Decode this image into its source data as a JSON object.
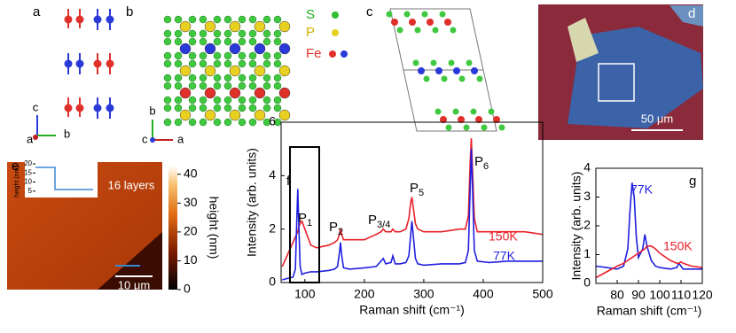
{
  "panels": [
    {
      "label": "a",
      "axes": [
        "c",
        "b",
        "a"
      ]
    },
    {
      "label": "b",
      "legend": [
        "S",
        "P",
        "Fe"
      ],
      "axes": [
        "b",
        "c",
        "a"
      ]
    },
    {
      "label": "c"
    },
    {
      "label": "d",
      "scale_bar": "50 μm"
    },
    {
      "label": "e",
      "inset": {
        "annotation": "16 layers",
        "ylabel": "height (nm)",
        "yticks": [
          20,
          15,
          10,
          5
        ],
        "ylim": [
          2,
          21
        ]
      },
      "colorbar": {
        "label": "height (nm)",
        "ticks": [
          0,
          10,
          20,
          30,
          40
        ],
        "lim": [
          0,
          43
        ]
      },
      "scale_bar": "10 μm"
    }
  ],
  "chart_data": [
    {
      "type": "line",
      "label": "f",
      "xlabel": "Raman shift (cm⁻¹)",
      "ylabel": "Intensity (arb. units)",
      "x": [
        62,
        70,
        80,
        84,
        86,
        88,
        90,
        92,
        95,
        100,
        110,
        120,
        140,
        150,
        155,
        158,
        160,
        162,
        165,
        175,
        200,
        220,
        228,
        232,
        236,
        245,
        248,
        252,
        260,
        270,
        275,
        278,
        280,
        283,
        286,
        290,
        300,
        330,
        360,
        370,
        375,
        378,
        380,
        382,
        385,
        390,
        410,
        440,
        470,
        500
      ],
      "xlim": [
        60,
        500
      ],
      "xticks": [
        100,
        200,
        300,
        400,
        500
      ],
      "ylim": [
        0,
        6
      ],
      "yticks": [
        0,
        2,
        4,
        6
      ],
      "series": [
        {
          "name": "150K",
          "color": "#e8202a",
          "values": [
            0.6,
            1.0,
            1.5,
            1.7,
            1.8,
            1.9,
            2.1,
            2.2,
            2.3,
            2.0,
            1.4,
            1.3,
            1.4,
            1.5,
            1.6,
            1.8,
            2.0,
            1.8,
            1.6,
            1.6,
            1.6,
            1.8,
            1.9,
            2.0,
            1.9,
            1.9,
            2.0,
            1.9,
            1.9,
            2.0,
            2.4,
            3.0,
            3.2,
            2.7,
            2.2,
            2.0,
            1.9,
            1.9,
            2.0,
            2.0,
            2.5,
            4.5,
            5.4,
            4.2,
            2.4,
            1.9,
            1.9,
            1.9,
            1.9,
            1.8
          ]
        },
        {
          "name": "77K",
          "color": "#1f1fe0",
          "values": [
            0.1,
            0.15,
            0.2,
            0.5,
            2.0,
            3.5,
            2.0,
            0.6,
            0.3,
            0.35,
            0.4,
            0.4,
            0.45,
            0.5,
            0.6,
            1.1,
            1.5,
            1.0,
            0.55,
            0.5,
            0.55,
            0.6,
            0.8,
            0.9,
            0.7,
            0.75,
            1.0,
            0.7,
            0.7,
            0.75,
            1.0,
            1.8,
            2.3,
            1.6,
            0.9,
            0.7,
            0.65,
            0.7,
            0.7,
            0.75,
            1.2,
            3.5,
            5.0,
            3.5,
            1.2,
            0.8,
            0.75,
            0.8,
            0.8,
            0.8
          ]
        }
      ],
      "annotations": [
        {
          "text": "P",
          "sub": "1"
        },
        {
          "text": "P",
          "sub": "2"
        },
        {
          "text": "P",
          "sub": "3/4"
        },
        {
          "text": "P",
          "sub": "5"
        },
        {
          "text": "P",
          "sub": "6"
        }
      ]
    },
    {
      "type": "line",
      "label": "g",
      "xlabel": "Raman shift (cm⁻¹)",
      "ylabel": "Intensity (arb. units)",
      "x": [
        70,
        75,
        80,
        83,
        85,
        86,
        87,
        88,
        89,
        90,
        92,
        93,
        94,
        96,
        98,
        100,
        105,
        108,
        109,
        110,
        111,
        113,
        115,
        120
      ],
      "xlim": [
        70,
        120
      ],
      "xticks": [
        80,
        90,
        100,
        110,
        120
      ],
      "ylim": [
        0,
        4
      ],
      "yticks": [
        0,
        1,
        2,
        3,
        4
      ],
      "series": [
        {
          "name": "77K",
          "color": "#1f1fe0",
          "values": [
            0.6,
            0.55,
            0.5,
            0.6,
            1.2,
            2.5,
            3.5,
            3.0,
            1.6,
            0.9,
            1.2,
            1.7,
            1.3,
            0.8,
            0.6,
            0.55,
            0.5,
            0.55,
            0.7,
            0.6,
            0.5,
            0.5,
            0.5,
            0.5
          ]
        },
        {
          "name": "150K",
          "color": "#e8202a",
          "values": [
            0.2,
            0.4,
            0.6,
            0.7,
            0.8,
            0.85,
            0.9,
            0.95,
            1.0,
            1.05,
            1.15,
            1.2,
            1.3,
            1.3,
            1.2,
            1.05,
            0.8,
            0.7,
            0.7,
            0.75,
            0.7,
            0.65,
            0.6,
            0.55
          ]
        }
      ]
    }
  ]
}
